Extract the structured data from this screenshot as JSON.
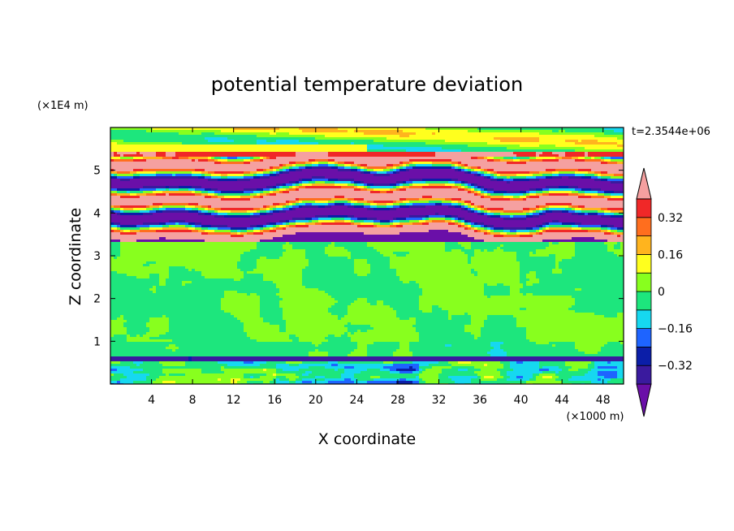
{
  "chart_data": {
    "type": "heatmap",
    "title": "potential temperature deviation",
    "xlabel": "X coordinate",
    "ylabel": "Z coordinate",
    "x_unit": "(×1000 m)",
    "y_unit": "(×1E4 m)",
    "time_label": "t=2.3544e+06",
    "xlim": [
      0,
      50
    ],
    "ylim": [
      0,
      6
    ],
    "x_ticks": [
      "4",
      "8",
      "12",
      "16",
      "20",
      "24",
      "28",
      "32",
      "36",
      "40",
      "44",
      "48"
    ],
    "y_ticks": [
      "1",
      "2",
      "3",
      "4",
      "5"
    ],
    "colorbar": {
      "tick_labels": [
        "0.32",
        "0.16",
        "0",
        "-0.16",
        "-0.32"
      ],
      "levels": [
        -0.4,
        -0.32,
        -0.24,
        -0.16,
        -0.08,
        0,
        0.08,
        0.16,
        0.24,
        0.32,
        0.4
      ],
      "colors": [
        "#6a0fa8",
        "#3a1a9e",
        "#0b1ea8",
        "#1e64ff",
        "#16d8f0",
        "#1de67d",
        "#88ff1e",
        "#ffff1e",
        "#ffb41e",
        "#ff6e1e",
        "#f02828",
        "#f5a0a0"
      ],
      "extend": "both"
    },
    "bands": [
      {
        "z_from": 0.0,
        "z_to": 0.55,
        "pattern": "turbulent mixed layer, mostly green/cyan with scattered warm (yellow/orange) and cold (cyan/blue) patches"
      },
      {
        "z_from": 0.55,
        "z_to": 0.62,
        "pattern": "thin strongly cold layer (dark blue)"
      },
      {
        "z_from": 0.62,
        "z_to": 3.3,
        "pattern": "near-zero field, green/cyan speckle"
      },
      {
        "z_from": 3.3,
        "z_to": 5.3,
        "pattern": "alternating strong warm (pink) and cold (purple) layers"
      },
      {
        "z_from": 5.3,
        "z_to": 6.0,
        "pattern": "weak warm/green layers near top"
      }
    ]
  }
}
